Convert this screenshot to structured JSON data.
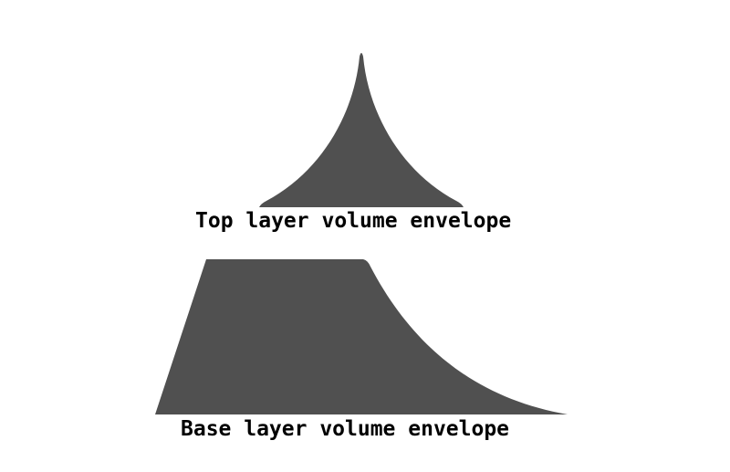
{
  "diagram": {
    "fill_color": "#505050",
    "top_layer": {
      "caption": "Top layer volume envelope"
    },
    "base_layer": {
      "caption": "Base layer volume envelope"
    }
  }
}
